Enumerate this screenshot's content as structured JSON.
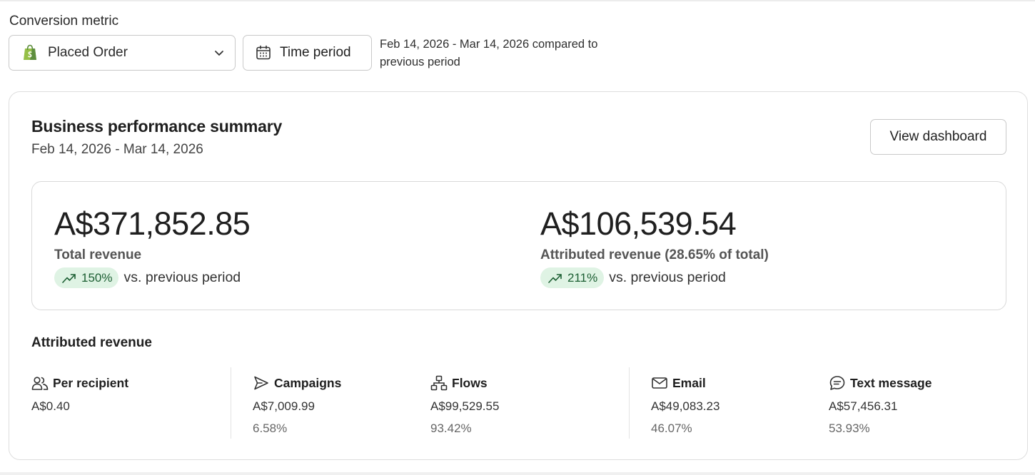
{
  "conversion_metric": {
    "label": "Conversion metric",
    "selected": "Placed Order",
    "icon": "shopify-bag-icon"
  },
  "time_period": {
    "label": "Time period",
    "description": "Feb 14, 2026 - Mar 14, 2026 compared to previous period"
  },
  "summary": {
    "title": "Business performance summary",
    "date_range": "Feb 14, 2026 - Mar 14, 2026",
    "view_dashboard_label": "View dashboard",
    "total": {
      "value": "A$371,852.85",
      "label": "Total revenue",
      "change": "150%",
      "comparison": "vs. previous period"
    },
    "attributed": {
      "value": "A$106,539.54",
      "label": "Attributed revenue (28.65% of total)",
      "change": "211%",
      "comparison": "vs. previous period"
    }
  },
  "attributed_revenue": {
    "title": "Attributed revenue",
    "metrics": [
      {
        "label": "Per recipient",
        "icon": "users-icon",
        "value": "A$0.40",
        "percent": ""
      },
      {
        "label": "Campaigns",
        "icon": "send-icon",
        "value": "A$7,009.99",
        "percent": "6.58%"
      },
      {
        "label": "Flows",
        "icon": "flow-icon",
        "value": "A$99,529.55",
        "percent": "93.42%"
      },
      {
        "label": "Email",
        "icon": "mail-icon",
        "value": "A$49,083.23",
        "percent": "46.07%"
      },
      {
        "label": "Text message",
        "icon": "message-icon",
        "value": "A$57,456.31",
        "percent": "53.93%"
      }
    ]
  },
  "colors": {
    "positive_pill_bg": "#dff3e4",
    "positive_text": "#1c5f33",
    "shopify_green": "#5e8e3e"
  }
}
